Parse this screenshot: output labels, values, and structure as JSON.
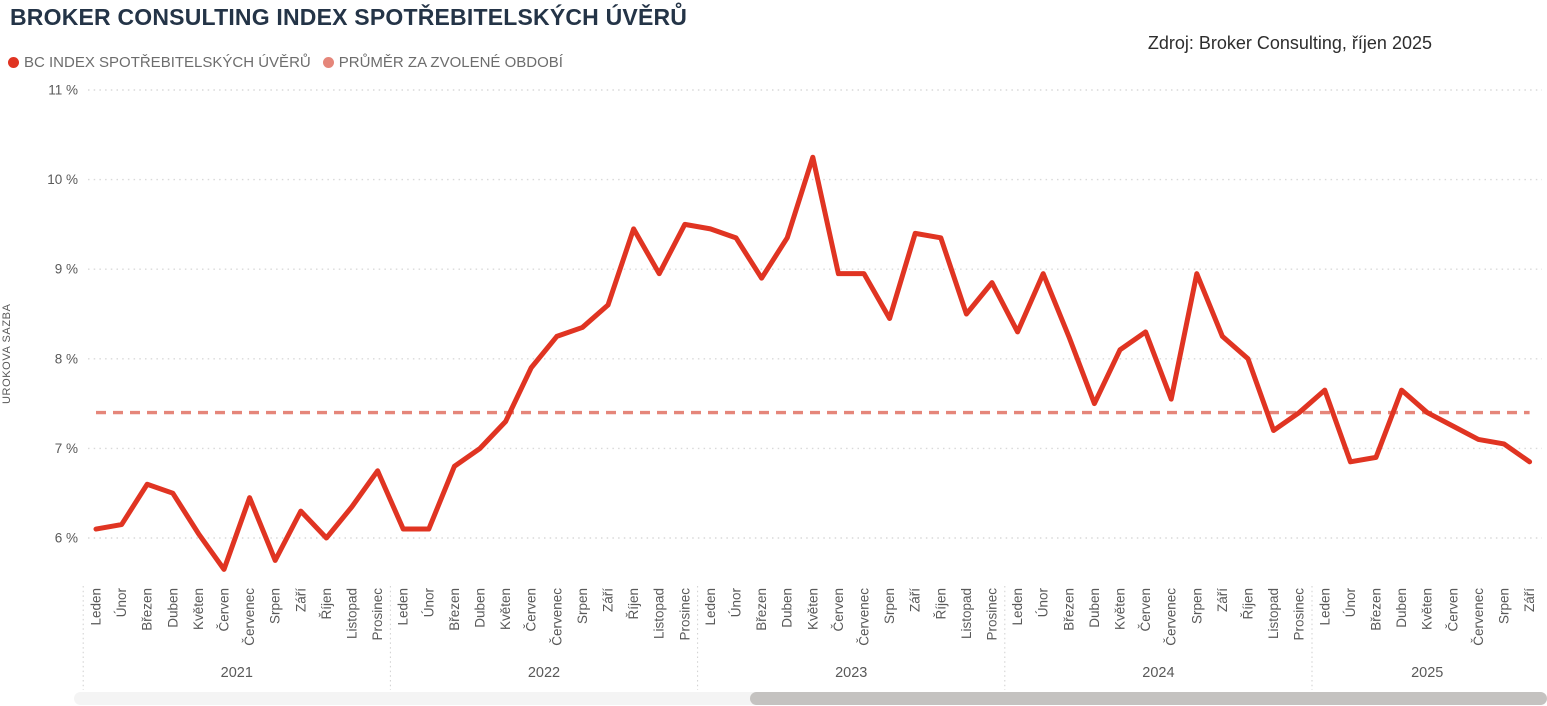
{
  "header": {
    "title": "BROKER CONSULTING INDEX SPOTŘEBITELSKÝCH ÚVĚRŮ",
    "source": "Zdroj: Broker Consulting, říjen 2025"
  },
  "legend": [
    {
      "label": "BC INDEX SPOTŘEBITELSKÝCH ÚVĚRŮ",
      "color": "#e03422",
      "marker": "dot"
    },
    {
      "label": "PRŮMĚR ZA ZVOLENÉ OBDOBÍ",
      "color": "#e5867a",
      "marker": "dot"
    }
  ],
  "chart_data": {
    "type": "line",
    "title": "BROKER CONSULTING INDEX SPOTŘEBITELSKÝCH ÚVĚRŮ",
    "xlabel": "",
    "ylabel": "UROKOVA SAZBA",
    "ylim": [
      5.5,
      11
    ],
    "grid": "dotted-horizontal",
    "legend_position": "top-left",
    "yticks": [
      {
        "value": 6,
        "label": "6 %"
      },
      {
        "value": 7,
        "label": "7 %"
      },
      {
        "value": 8,
        "label": "8 %"
      },
      {
        "value": 9,
        "label": "9 %"
      },
      {
        "value": 10,
        "label": "10 %"
      },
      {
        "value": 11,
        "label": "11 %"
      }
    ],
    "month_labels": [
      "Leden",
      "Únor",
      "Březen",
      "Duben",
      "Květen",
      "Červen",
      "Červenec",
      "Srpen",
      "Září",
      "Říjen",
      "Listopad",
      "Prosinec"
    ],
    "years": [
      {
        "label": "2021",
        "count": 12
      },
      {
        "label": "2022",
        "count": 12
      },
      {
        "label": "2023",
        "count": 12
      },
      {
        "label": "2024",
        "count": 12
      },
      {
        "label": "2025",
        "count": 9
      }
    ],
    "series": [
      {
        "name": "BC INDEX SPOTŘEBITELSKÝCH ÚVĚRŮ",
        "color": "#e03422",
        "style": "solid",
        "unit": "%",
        "values": [
          6.1,
          6.15,
          6.6,
          6.5,
          6.05,
          5.65,
          6.45,
          5.75,
          6.3,
          6.0,
          6.35,
          6.75,
          6.1,
          6.1,
          6.8,
          7.0,
          7.3,
          7.9,
          8.25,
          8.35,
          8.6,
          9.45,
          8.95,
          9.5,
          9.45,
          9.35,
          8.9,
          9.35,
          10.25,
          8.95,
          8.95,
          8.45,
          9.4,
          9.35,
          8.5,
          8.85,
          8.3,
          8.95,
          8.25,
          7.5,
          8.1,
          8.3,
          7.55,
          8.95,
          8.25,
          8.0,
          7.2,
          7.4,
          7.65,
          6.85,
          6.9,
          7.65,
          7.4,
          7.25,
          7.1,
          7.05,
          6.85
        ]
      },
      {
        "name": "PRŮMĚR ZA ZVOLENÉ OBDOBÍ",
        "color": "#e5867a",
        "style": "dashed",
        "unit": "%",
        "average_value": 7.4
      }
    ]
  },
  "scrollbar": {
    "orientation": "horizontal",
    "thumb_position": "right-half"
  }
}
